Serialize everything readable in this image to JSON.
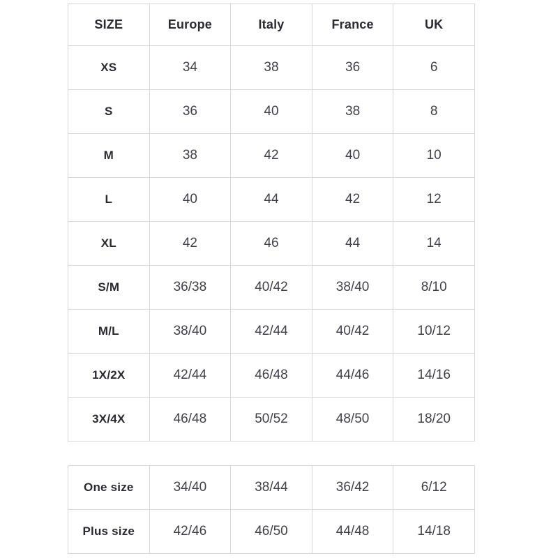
{
  "colors": {
    "page_bg": "#ffffff",
    "border": "#d8d8d8",
    "header_text": "#2a2a33",
    "cell_text": "#41414b"
  },
  "size_chart": {
    "columns": [
      "SIZE",
      "Europe",
      "Italy",
      "France",
      "UK"
    ],
    "rows": [
      {
        "label": "XS",
        "cells": [
          "34",
          "38",
          "36",
          "6"
        ]
      },
      {
        "label": "S",
        "cells": [
          "36",
          "40",
          "38",
          "8"
        ]
      },
      {
        "label": "M",
        "cells": [
          "38",
          "42",
          "40",
          "10"
        ]
      },
      {
        "label": "L",
        "cells": [
          "40",
          "44",
          "42",
          "12"
        ]
      },
      {
        "label": "XL",
        "cells": [
          "42",
          "46",
          "44",
          "14"
        ]
      },
      {
        "label": "S/M",
        "cells": [
          "36/38",
          "40/42",
          "38/40",
          "8/10"
        ]
      },
      {
        "label": "M/L",
        "cells": [
          "38/40",
          "42/44",
          "40/42",
          "10/12"
        ]
      },
      {
        "label": "1X/2X",
        "cells": [
          "42/44",
          "46/48",
          "44/46",
          "14/16"
        ]
      },
      {
        "label": "3X/4X",
        "cells": [
          "46/48",
          "50/52",
          "48/50",
          "18/20"
        ]
      }
    ]
  },
  "special_sizes": {
    "rows": [
      {
        "label": "One size",
        "cells": [
          "34/40",
          "38/44",
          "36/42",
          "6/12"
        ]
      },
      {
        "label": "Plus size",
        "cells": [
          "42/46",
          "46/50",
          "44/48",
          "14/18"
        ]
      }
    ]
  },
  "chart_data": [
    {
      "type": "table",
      "columns": [
        "SIZE",
        "Europe",
        "Italy",
        "France",
        "UK"
      ],
      "rows": [
        [
          "XS",
          "34",
          "38",
          "36",
          "6"
        ],
        [
          "S",
          "36",
          "40",
          "38",
          "8"
        ],
        [
          "M",
          "38",
          "42",
          "40",
          "10"
        ],
        [
          "L",
          "40",
          "44",
          "42",
          "12"
        ],
        [
          "XL",
          "42",
          "46",
          "44",
          "14"
        ],
        [
          "S/M",
          "36/38",
          "40/42",
          "38/40",
          "8/10"
        ],
        [
          "M/L",
          "38/40",
          "42/44",
          "40/42",
          "10/12"
        ],
        [
          "1X/2X",
          "42/44",
          "46/48",
          "44/46",
          "14/16"
        ],
        [
          "3X/4X",
          "46/48",
          "50/52",
          "48/50",
          "18/20"
        ]
      ]
    },
    {
      "type": "table",
      "columns": [],
      "rows": [
        [
          "One size",
          "34/40",
          "38/44",
          "36/42",
          "6/12"
        ],
        [
          "Plus size",
          "42/46",
          "46/50",
          "44/48",
          "14/18"
        ]
      ]
    }
  ]
}
